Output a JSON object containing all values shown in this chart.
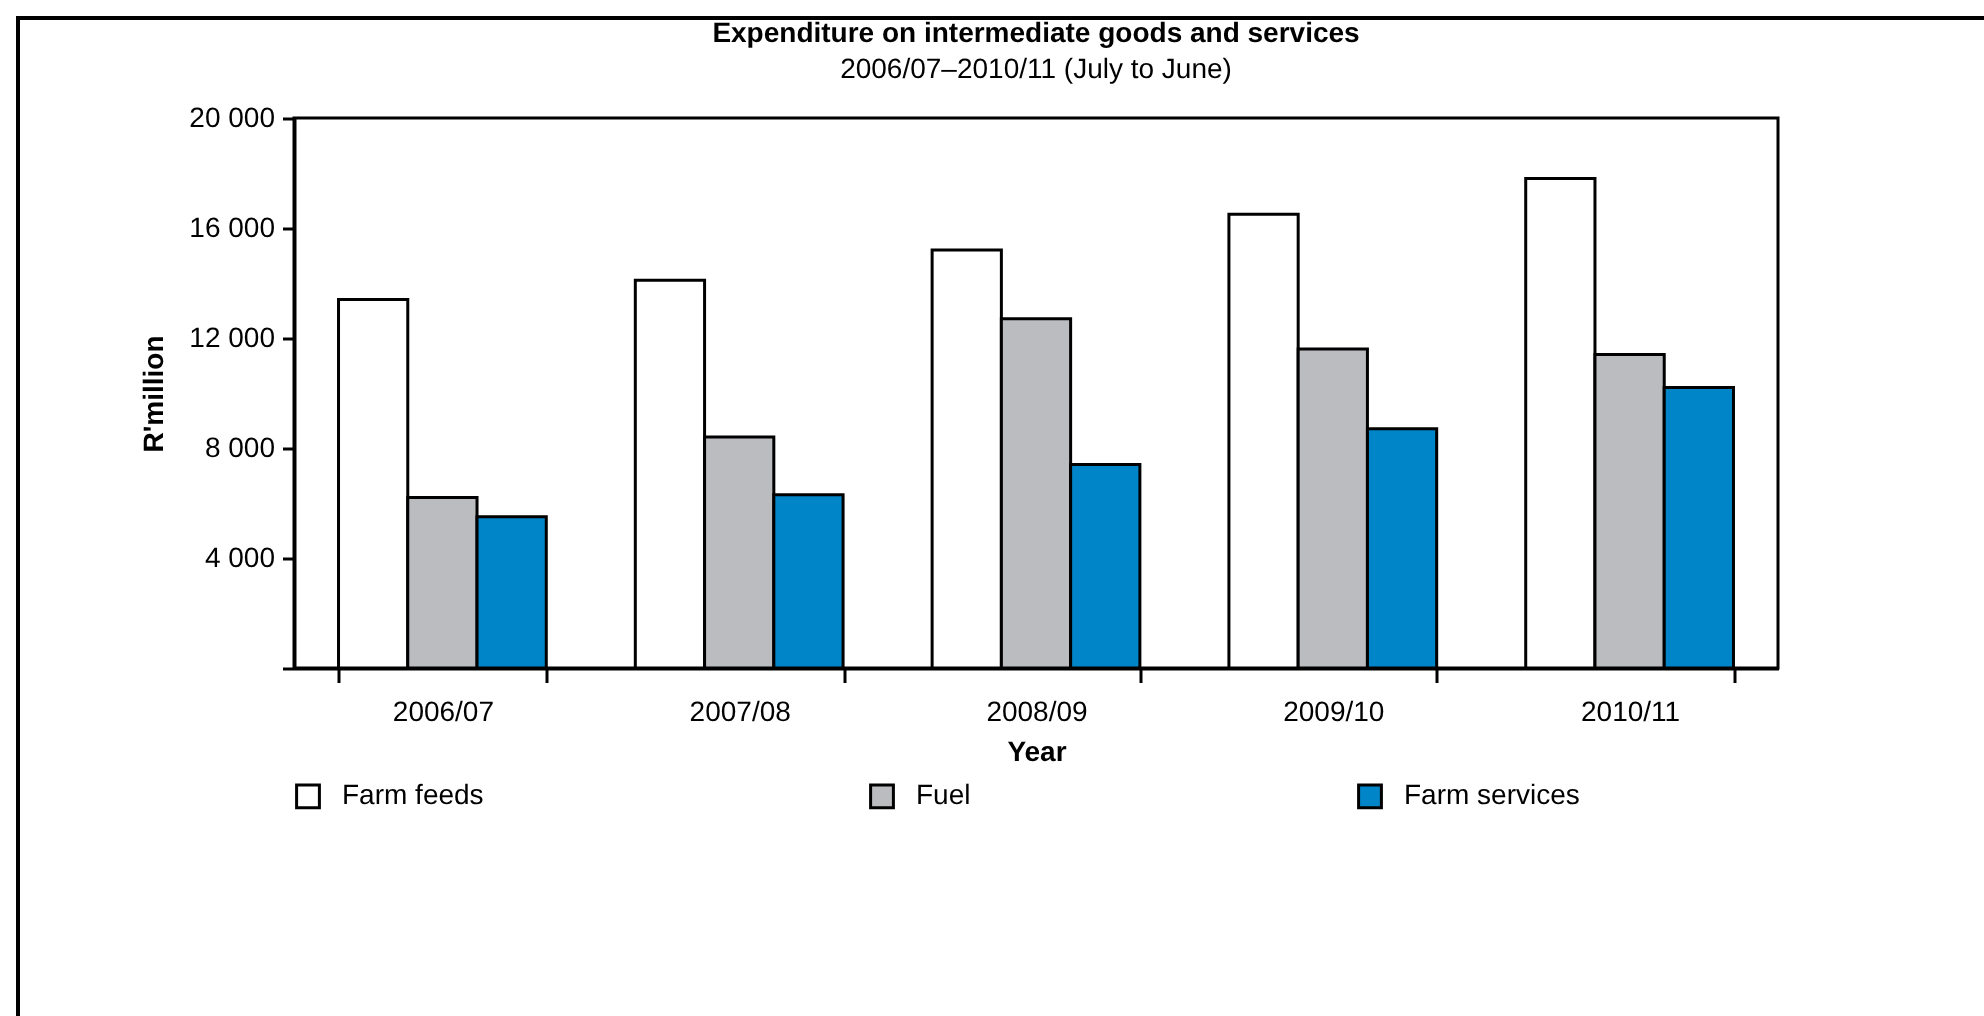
{
  "chart_data": {
    "type": "bar",
    "title": "Expenditure on  intermediate goods and services",
    "subtitle": "2006/07–2010/11 (July to June)",
    "xlabel": "Year",
    "ylabel": "R'million",
    "categories": [
      "2006/07",
      "2007/08",
      "2008/09",
      "2009/10",
      "2010/11"
    ],
    "series": [
      {
        "name": "Farm feeds",
        "color": "#ffffff",
        "values": [
          13400,
          14100,
          15200,
          16500,
          17800
        ]
      },
      {
        "name": "Fuel",
        "color": "#bbbcc0",
        "values": [
          6200,
          8400,
          12700,
          11600,
          11400
        ]
      },
      {
        "name": "Farm services",
        "color": "#0085c8",
        "values": [
          5500,
          6300,
          7400,
          8700,
          10200
        ]
      }
    ],
    "ylim": [
      0,
      20000
    ],
    "yticks": [
      {
        "value": 0,
        "label": null
      },
      {
        "value": 4000,
        "label": "4 000"
      },
      {
        "value": 8000,
        "label": "8 000"
      },
      {
        "value": 12000,
        "label": "12 000"
      },
      {
        "value": 16000,
        "label": "16 000"
      },
      {
        "value": 20000,
        "label": "20 000"
      }
    ],
    "grid": false,
    "legend": "bottom"
  }
}
